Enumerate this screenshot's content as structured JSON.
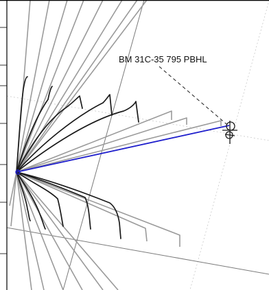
{
  "map": {
    "annotation_label": "BM 31C-35 795 PBHL",
    "colors": {
      "background": "#ffffff",
      "frame": "#000000",
      "grid": "#c8c8c8",
      "boundary_line": "#7a7a7a",
      "offset_well": "#9a9a9a",
      "offset_well_recent": "#1a1a1a",
      "selected_wellpath": "#1f1fcc",
      "leader_line": "#1a1a1a",
      "target_marker": "#1a1a1a"
    },
    "icons": {
      "target": "target-crosshair-icon",
      "surface": "surface-location-icon"
    }
  }
}
